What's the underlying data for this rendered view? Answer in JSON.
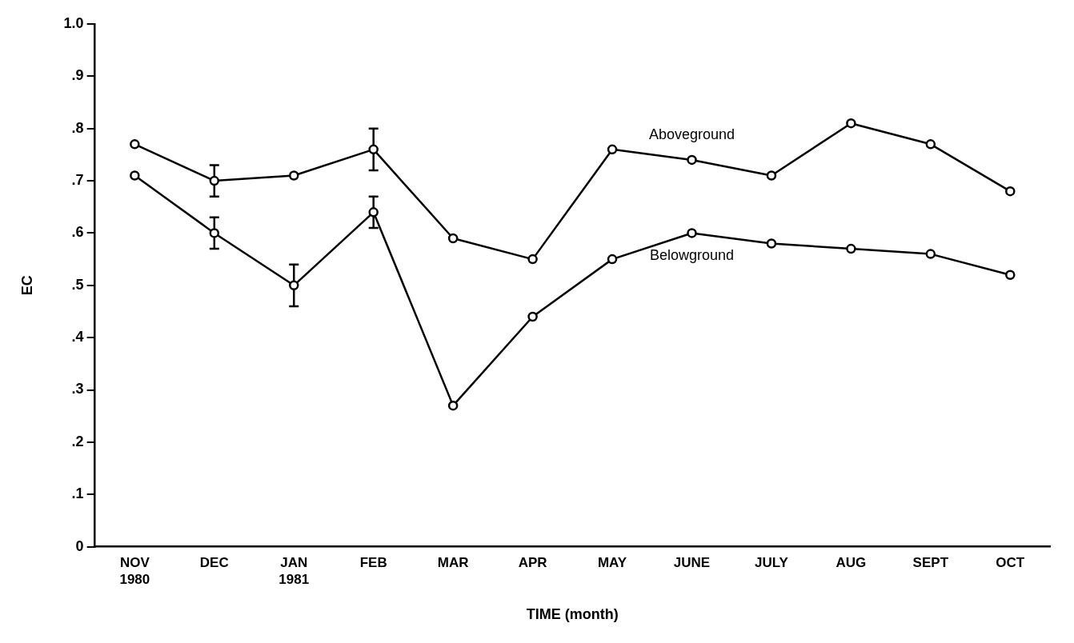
{
  "chart_data": {
    "type": "line",
    "xlabel": "TIME (month)",
    "ylabel": "EC",
    "categories": [
      "NOV 1980",
      "DEC",
      "JAN 1981",
      "FEB",
      "MAR",
      "APR",
      "MAY",
      "JUNE",
      "JULY",
      "AUG",
      "SEPT",
      "OCT"
    ],
    "series": [
      {
        "name": "Aboveground",
        "color": "#000000",
        "values": [
          0.77,
          0.7,
          0.71,
          0.76,
          0.59,
          0.55,
          0.76,
          0.74,
          0.71,
          0.81,
          0.77,
          0.68
        ],
        "errors": [
          null,
          0.03,
          null,
          0.04,
          null,
          null,
          null,
          null,
          null,
          null,
          null,
          null
        ]
      },
      {
        "name": "Belowground",
        "color": "#000000",
        "values": [
          0.71,
          0.6,
          0.5,
          0.64,
          0.27,
          0.44,
          0.55,
          0.6,
          0.58,
          0.57,
          0.56,
          0.52
        ],
        "errors": [
          null,
          0.03,
          0.04,
          0.03,
          null,
          null,
          null,
          null,
          null,
          null,
          null,
          null
        ]
      }
    ],
    "ylim": [
      0,
      1.0
    ],
    "yticks": [
      0,
      {
        "value": 0.1,
        "label": ".1"
      },
      {
        "value": 0.2,
        "label": ".2"
      },
      {
        "value": 0.3,
        "label": ".3"
      },
      {
        "value": 0.4,
        "label": ".4"
      },
      {
        "value": 0.5,
        "label": ".5"
      },
      {
        "value": 0.6,
        "label": ".6"
      },
      {
        "value": 0.7,
        "label": ".7"
      },
      {
        "value": 0.8,
        "label": ".8"
      },
      {
        "value": 0.9,
        "label": ".9"
      },
      {
        "value": 1.0,
        "label": "1.0"
      }
    ],
    "grid": false,
    "legend": false,
    "marker": "circle",
    "line_style": "solid"
  }
}
